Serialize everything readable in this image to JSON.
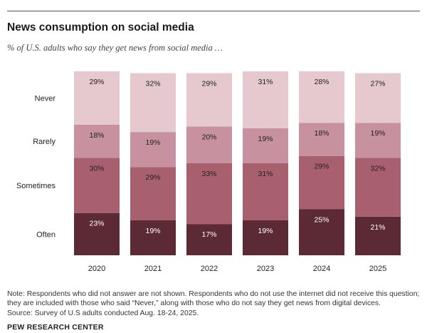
{
  "title": "News consumption on social media",
  "subtitle": "% of U.S. adults who say they get news from social media …",
  "note_lines": [
    "Note: Respondents who did not answer are not shown. Respondents who do not use the internet did not receive this question;",
    "they are included with those who said “Never,” along with those who do not say they get news from digital devices.",
    "Source: Survey of U.S adults conducted Aug. 18-24, 2025."
  ],
  "organization": "PEW RESEARCH CENTER",
  "colors": {
    "often": "#5c2a35",
    "sometimes": "#a9606e",
    "rarely": "#c891a0",
    "never": "#e6c8cf"
  },
  "chart_data": {
    "type": "bar",
    "stacked": true,
    "categories": [
      "2020",
      "2021",
      "2022",
      "2023",
      "2024",
      "2025"
    ],
    "series": [
      {
        "name": "Often",
        "values": [
          23,
          19,
          17,
          19,
          25,
          21
        ]
      },
      {
        "name": "Sometimes",
        "values": [
          30,
          29,
          33,
          31,
          29,
          32
        ]
      },
      {
        "name": "Rarely",
        "values": [
          18,
          19,
          20,
          19,
          18,
          19
        ]
      },
      {
        "name": "Never",
        "values": [
          29,
          32,
          29,
          31,
          28,
          27
        ]
      }
    ],
    "value_suffix": "%",
    "legend": "left-side row labels"
  }
}
